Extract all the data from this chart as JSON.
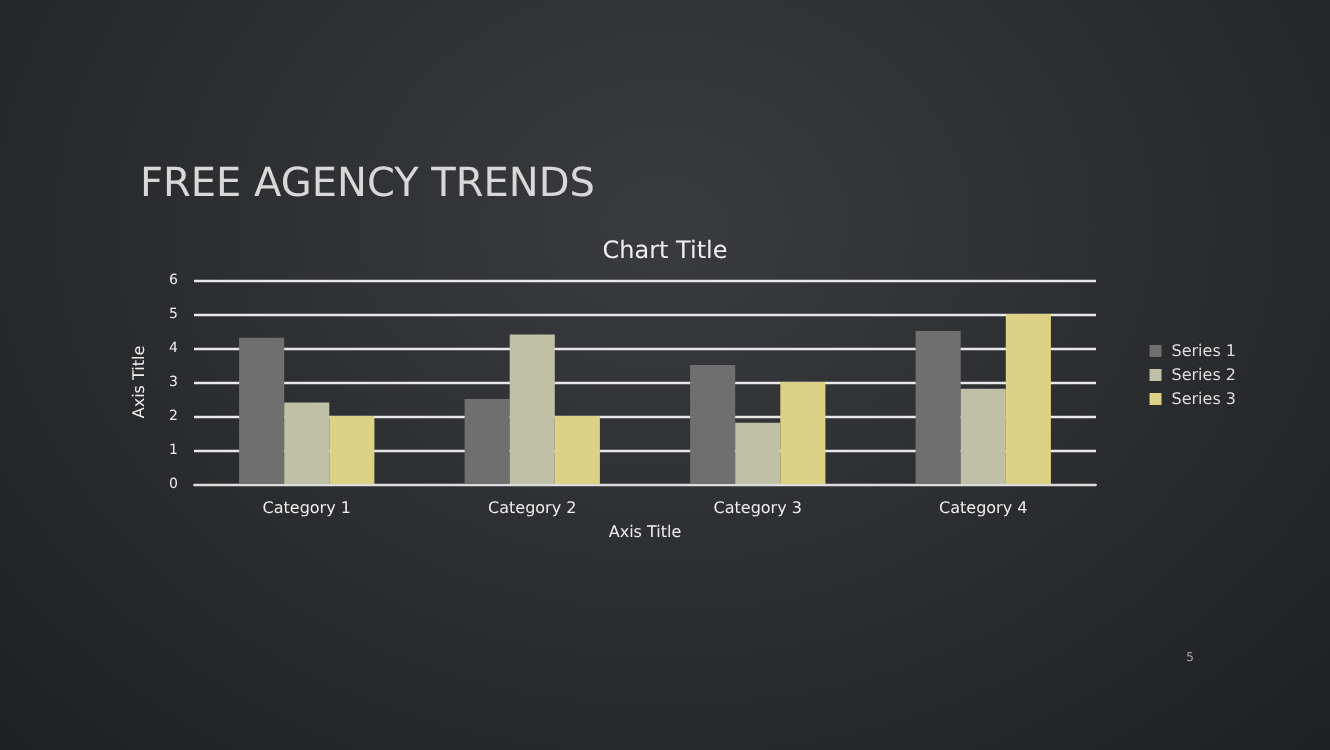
{
  "chart_data": {
    "type": "bar",
    "title": "FREE AGENCY TRENDS",
    "subtitle": "Chart Title",
    "xlabel": "Axis Title",
    "ylabel": "Axis Title",
    "categories": [
      "Category 1",
      "Category 2",
      "Category 3",
      "Category 4"
    ],
    "series": [
      {
        "name": "Series 1",
        "color": "#6f6f6f",
        "values": [
          4.3,
          2.5,
          3.5,
          4.5
        ]
      },
      {
        "name": "Series 2",
        "color": "#c0c0a6",
        "values": [
          2.4,
          4.4,
          1.8,
          2.8
        ]
      },
      {
        "name": "Series 3",
        "color": "#dcd184",
        "values": [
          2,
          2,
          3,
          5
        ]
      }
    ],
    "ylim": [
      0,
      6
    ],
    "yticks": [
      0,
      1,
      2,
      3,
      4,
      5,
      6
    ],
    "grid": "y",
    "legend": "right",
    "annotations": [
      "5"
    ]
  }
}
